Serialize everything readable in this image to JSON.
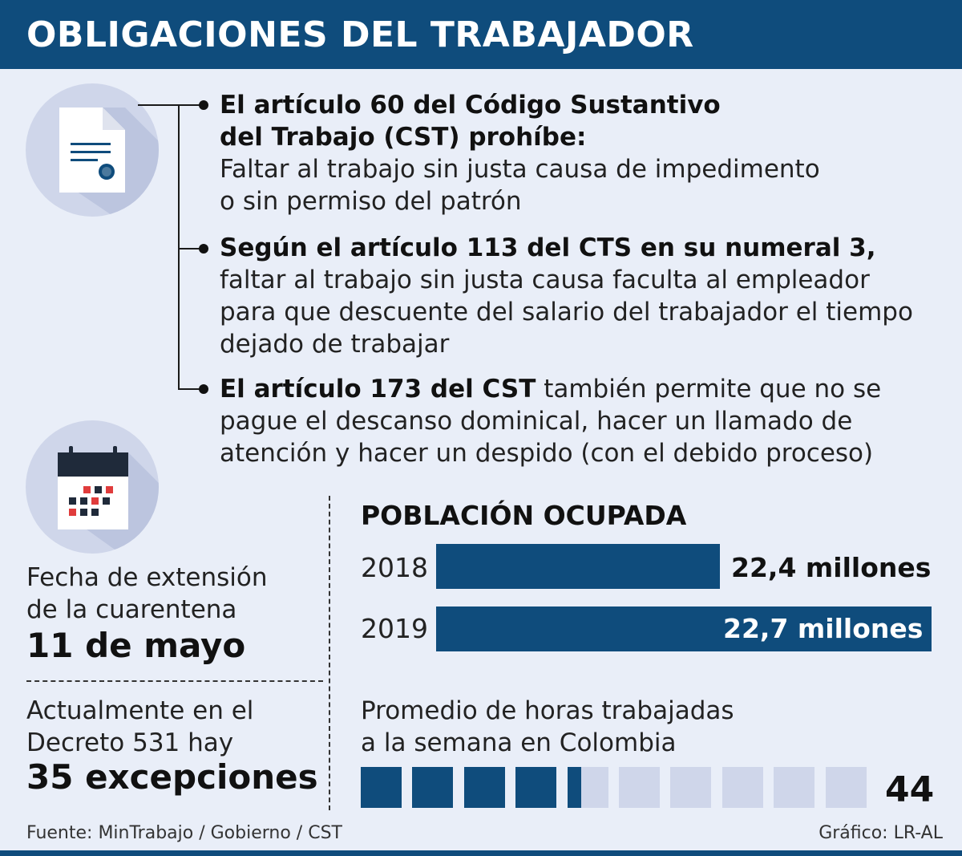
{
  "header": {
    "title": "OBLIGACIONES DEL  TRABAJADOR"
  },
  "icons": {
    "document": "document-certificate-icon",
    "calendar": "calendar-icon"
  },
  "points": [
    {
      "bold_lines": [
        "El artículo 60 del Código Sustantivo",
        "del Trabajo (CST) prohíbe:"
      ],
      "text_lines": [
        "Faltar al trabajo sin justa causa de impedimento",
        "o sin permiso del patrón"
      ]
    },
    {
      "bold_lines": [
        "Según el artículo 113 del CTS en su numeral 3,"
      ],
      "text_lines": [
        "faltar al trabajo sin justa causa faculta al empleador",
        "para que descuente del salario del trabajador el tiempo",
        "dejado de trabajar"
      ]
    },
    {
      "bold_inline": "El artículo 173 del CST",
      "inline_rest": " también permite que no se",
      "text_lines": [
        "pague el descanso dominical, hacer un llamado de",
        "atención y hacer un despido (con el debido proceso)"
      ]
    }
  ],
  "quarantine": {
    "label_lines": [
      "Fecha de extensión",
      "de la cuarentena"
    ],
    "value": "11 de mayo"
  },
  "decree": {
    "label_lines": [
      "Actualmente en el",
      "Decreto 531 hay"
    ],
    "value": "35 excepciones"
  },
  "chart_data": {
    "type": "bar",
    "orientation": "horizontal",
    "title": "POBLACIÓN OCUPADA",
    "categories": [
      "2018",
      "2019"
    ],
    "values": [
      22.4,
      22.7
    ],
    "value_labels": [
      "22,4 millones",
      "22,7 millones"
    ],
    "unit": "millones",
    "color": "#0f4c7c"
  },
  "hours": {
    "label_lines": [
      "Promedio de horas trabajadas",
      "a la semana en Colombia"
    ],
    "value": "44",
    "value_number": 44,
    "blocks_total": 10,
    "blocks_filled": 4.35,
    "fill_color": "#0f4c7c",
    "empty_color": "#cfd6ea"
  },
  "footer": {
    "source": "Fuente: MinTrabajo / Gobierno / CST",
    "credit": "Gráfico: LR-AL"
  }
}
